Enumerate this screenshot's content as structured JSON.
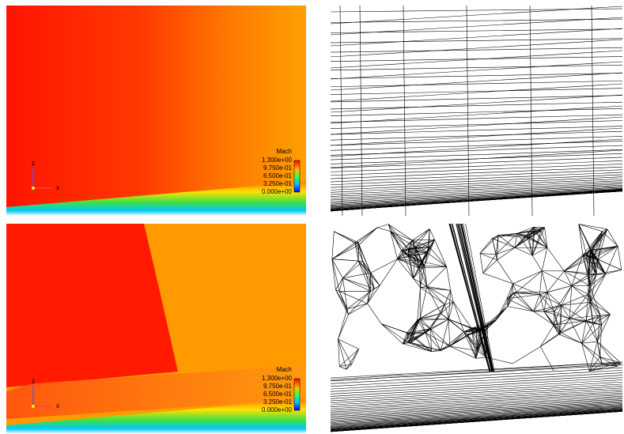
{
  "panels": [
    {
      "legend": {
        "title": "Mach",
        "labels": [
          "1.300e+00",
          "9.750e-01",
          "6.500e-01",
          "3.250e-01",
          "0.000e+00"
        ]
      },
      "axes": {
        "z": "z",
        "x": "x"
      }
    },
    {
      "legend": {
        "title": "Mach",
        "labels": [
          "1.300e+00",
          "9.750e-01",
          "6.500e-01",
          "3.250e-01",
          "0.000e+00"
        ]
      },
      "axes": {
        "z": "z",
        "x": "x"
      }
    }
  ]
}
